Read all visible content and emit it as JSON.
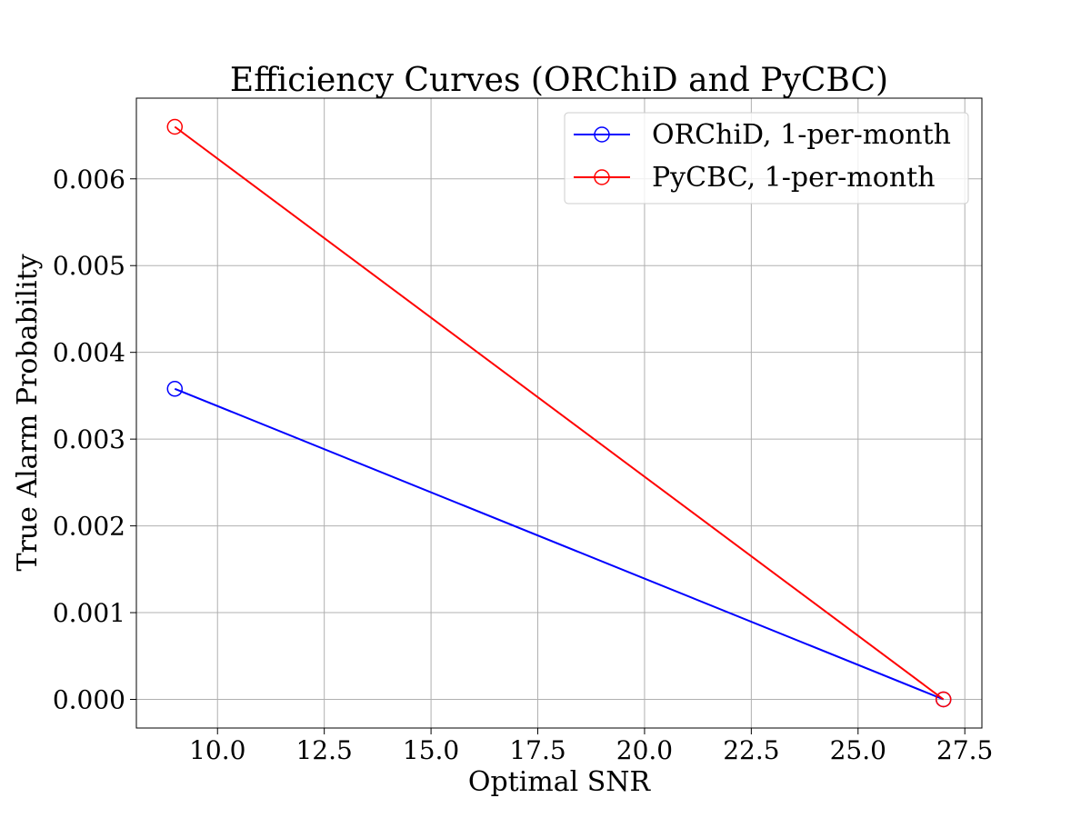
{
  "chart_data": {
    "type": "line",
    "title": "Efficiency Curves (ORChiD and PyCBC)",
    "xlabel": "Optimal SNR",
    "ylabel": "True Alarm Probability",
    "xlim": [
      8.1,
      27.9
    ],
    "ylim": [
      -0.00033,
      0.00693
    ],
    "xticks": [
      10.0,
      12.5,
      15.0,
      17.5,
      20.0,
      22.5,
      25.0,
      27.5
    ],
    "xtick_labels": [
      "10.0",
      "12.5",
      "15.0",
      "17.5",
      "20.0",
      "22.5",
      "25.0",
      "27.5"
    ],
    "yticks": [
      0.0,
      0.001,
      0.002,
      0.003,
      0.004,
      0.005,
      0.006
    ],
    "ytick_labels": [
      "0.000",
      "0.001",
      "0.002",
      "0.003",
      "0.004",
      "0.005",
      "0.006"
    ],
    "grid": true,
    "legend_position": "top-right",
    "series": [
      {
        "name": "ORChiD, 1-per-month",
        "color": "#0000ff",
        "marker": "open-circle",
        "x": [
          9.0,
          27.0
        ],
        "y": [
          0.00358,
          0.0
        ]
      },
      {
        "name": "PyCBC, 1-per-month",
        "color": "#ff0000",
        "marker": "open-circle",
        "x": [
          9.0,
          27.0
        ],
        "y": [
          0.0066,
          0.0
        ]
      }
    ]
  }
}
